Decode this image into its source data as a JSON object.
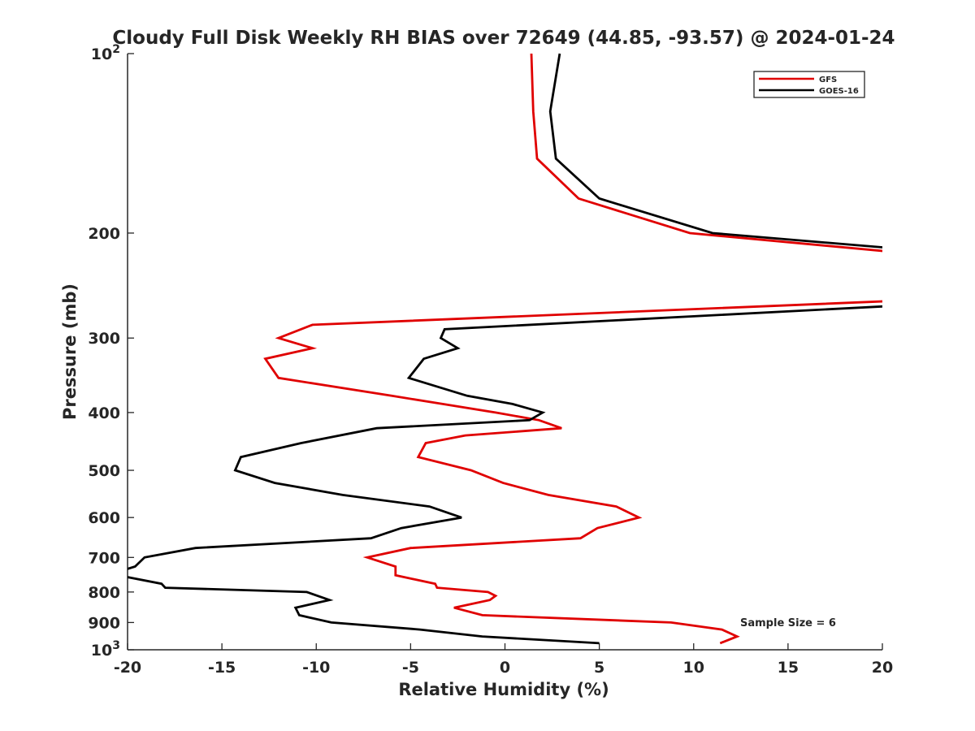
{
  "chart_data": {
    "type": "line",
    "title": "Cloudy Full Disk Weekly RH BIAS over 72649 (44.85, -93.57) @ 2024-01-24",
    "xlabel": "Relative Humidity (%)",
    "ylabel": "Pressure (mb)",
    "xlim": [
      -20,
      20
    ],
    "ylim": [
      100,
      1000
    ],
    "y_scale": "log",
    "y_reversed": true,
    "grid": false,
    "legend_position": "top-right",
    "x_ticks": [
      "-20",
      "-15",
      "-10",
      "-5",
      "0",
      "5",
      "10",
      "15",
      "20"
    ],
    "x_tick_values": [
      -20,
      -15,
      -10,
      -5,
      0,
      5,
      10,
      15,
      20
    ],
    "y_ticks": [
      {
        "value": 100,
        "base": "10",
        "exp": "2"
      },
      {
        "value": 200,
        "label": "200"
      },
      {
        "value": 300,
        "label": "300"
      },
      {
        "value": 400,
        "label": "400"
      },
      {
        "value": 500,
        "label": "500"
      },
      {
        "value": 600,
        "label": "600"
      },
      {
        "value": 700,
        "label": "700"
      },
      {
        "value": 800,
        "label": "800"
      },
      {
        "value": 900,
        "label": "900"
      },
      {
        "value": 1000,
        "base": "10",
        "exp": "3"
      }
    ],
    "annotation": "Sample Size = 6",
    "series": [
      {
        "name": "GFS",
        "color": "#e00000",
        "points": [
          [
            1.4,
            100
          ],
          [
            1.5,
            125
          ],
          [
            1.7,
            150
          ],
          [
            3.9,
            175
          ],
          [
            9.8,
            200
          ],
          [
            20.5,
            215
          ],
          [
            20.5,
            260
          ],
          [
            -10.2,
            285
          ],
          [
            -12.0,
            300
          ],
          [
            -10.2,
            312
          ],
          [
            -12.7,
            325
          ],
          [
            -12.0,
            350
          ],
          [
            -6.0,
            375
          ],
          [
            -3.3,
            387
          ],
          [
            -0.5,
            400
          ],
          [
            1.8,
            412
          ],
          [
            3.0,
            425
          ],
          [
            -2.1,
            437
          ],
          [
            -4.2,
            450
          ],
          [
            -4.6,
            475
          ],
          [
            -1.8,
            500
          ],
          [
            -0.1,
            525
          ],
          [
            2.3,
            550
          ],
          [
            5.9,
            575
          ],
          [
            7.1,
            600
          ],
          [
            4.9,
            625
          ],
          [
            4.0,
            650
          ],
          [
            -5.0,
            675
          ],
          [
            -7.3,
            700
          ],
          [
            -5.8,
            725
          ],
          [
            -5.8,
            750
          ],
          [
            -3.7,
            775
          ],
          [
            -3.6,
            787
          ],
          [
            -0.9,
            800
          ],
          [
            -0.5,
            812
          ],
          [
            -0.8,
            825
          ],
          [
            -2.7,
            850
          ],
          [
            -1.2,
            875
          ],
          [
            8.8,
            900
          ],
          [
            11.5,
            925
          ],
          [
            12.3,
            950
          ],
          [
            11.4,
            975
          ]
        ]
      },
      {
        "name": "GOES-16",
        "color": "#000000",
        "points": [
          [
            2.9,
            100
          ],
          [
            2.4,
            125
          ],
          [
            2.7,
            150
          ],
          [
            5.0,
            175
          ],
          [
            11.0,
            200
          ],
          [
            20.5,
            212
          ],
          [
            20.5,
            265
          ],
          [
            -3.2,
            290
          ],
          [
            -3.4,
            300
          ],
          [
            -2.5,
            312
          ],
          [
            -4.3,
            325
          ],
          [
            -5.1,
            350
          ],
          [
            -2.0,
            375
          ],
          [
            0.4,
            387
          ],
          [
            2.0,
            400
          ],
          [
            1.3,
            412
          ],
          [
            -6.8,
            425
          ],
          [
            -10.8,
            450
          ],
          [
            -14.0,
            475
          ],
          [
            -14.3,
            500
          ],
          [
            -12.2,
            525
          ],
          [
            -8.6,
            550
          ],
          [
            -4.0,
            575
          ],
          [
            -2.3,
            600
          ],
          [
            -5.5,
            625
          ],
          [
            -7.1,
            650
          ],
          [
            -16.4,
            675
          ],
          [
            -19.1,
            700
          ],
          [
            -19.6,
            725
          ],
          [
            -20.5,
            740
          ],
          [
            -20.5,
            750
          ],
          [
            -18.2,
            775
          ],
          [
            -18.0,
            787
          ],
          [
            -10.5,
            800
          ],
          [
            -9.3,
            825
          ],
          [
            -11.1,
            850
          ],
          [
            -10.9,
            875
          ],
          [
            -9.2,
            900
          ],
          [
            -4.5,
            925
          ],
          [
            -1.2,
            950
          ],
          [
            5.0,
            975
          ]
        ]
      }
    ]
  }
}
